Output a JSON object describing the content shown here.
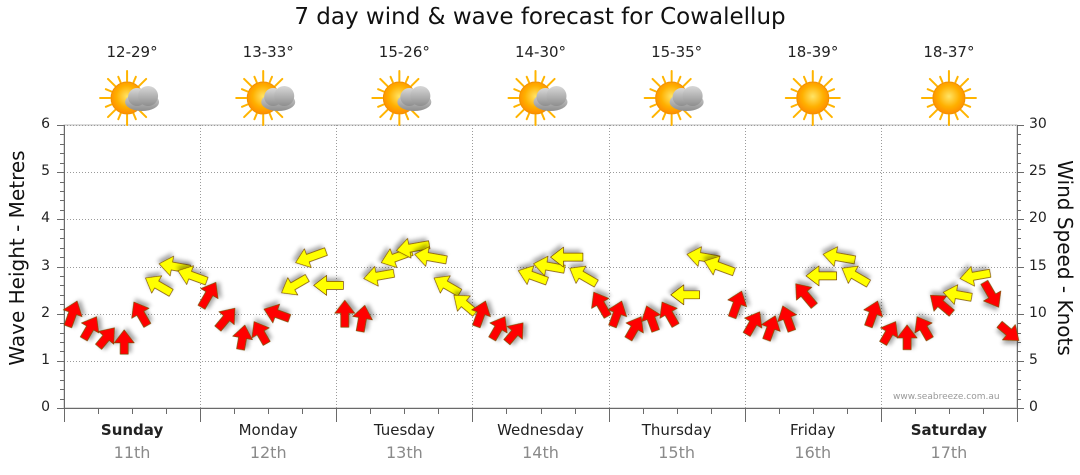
{
  "chart_data": {
    "type": "wind-wave-forecast",
    "title": "7 day wind & wave forecast for Cowalellup",
    "ylabel_left": "Wave Height - Metres",
    "ylabel_right": "Wind Speed - Knots",
    "ylim_left": [
      0,
      6
    ],
    "ylim_right": [
      0,
      30
    ],
    "yticks_left": [
      "0",
      "1",
      "2",
      "3",
      "4",
      "5",
      "6"
    ],
    "yticks_right": [
      "0",
      "5",
      "10",
      "15",
      "20",
      "25",
      "30"
    ],
    "credit": "www.seabreeze.com.au",
    "days": [
      {
        "name": "Sunday",
        "date": "11th",
        "temp": "12-29°",
        "weather": "partly-cloudy",
        "weekend": true
      },
      {
        "name": "Monday",
        "date": "12th",
        "temp": "13-33°",
        "weather": "partly-cloudy",
        "weekend": false
      },
      {
        "name": "Tuesday",
        "date": "13th",
        "temp": "15-26°",
        "weather": "partly-cloudy",
        "weekend": false
      },
      {
        "name": "Wednesday",
        "date": "14th",
        "temp": "14-30°",
        "weather": "partly-cloudy",
        "weekend": false
      },
      {
        "name": "Thursday",
        "date": "15th",
        "temp": "15-35°",
        "weather": "partly-cloudy",
        "weekend": false
      },
      {
        "name": "Friday",
        "date": "16th",
        "temp": "18-39°",
        "weather": "sunny",
        "weekend": false
      },
      {
        "name": "Saturday",
        "date": "17th",
        "temp": "18-37°",
        "weather": "sunny",
        "weekend": true
      }
    ],
    "wind_colors": {
      "offshore": "#ff0000",
      "onshore": "#ffff00"
    },
    "wind_series": [
      {
        "t": 0.0,
        "knots": 10,
        "dir": 200,
        "color": "offshore"
      },
      {
        "t": 0.13,
        "knots": 8.5,
        "dir": 210,
        "color": "offshore"
      },
      {
        "t": 0.25,
        "knots": 7.5,
        "dir": 220,
        "color": "offshore"
      },
      {
        "t": 0.38,
        "knots": 7.0,
        "dir": 180,
        "color": "offshore"
      },
      {
        "t": 0.5,
        "knots": 10,
        "dir": 150,
        "color": "offshore"
      },
      {
        "t": 0.63,
        "knots": 13,
        "dir": 120,
        "color": "onshore"
      },
      {
        "t": 0.75,
        "knots": 15,
        "dir": 100,
        "color": "onshore"
      },
      {
        "t": 0.88,
        "knots": 14,
        "dir": 110,
        "color": "onshore"
      },
      {
        "t": 1.0,
        "knots": 12,
        "dir": 210,
        "color": "offshore"
      },
      {
        "t": 1.13,
        "knots": 9.5,
        "dir": 220,
        "color": "offshore"
      },
      {
        "t": 1.25,
        "knots": 7.5,
        "dir": 190,
        "color": "offshore"
      },
      {
        "t": 1.38,
        "knots": 8.0,
        "dir": 150,
        "color": "offshore"
      },
      {
        "t": 1.5,
        "knots": 10,
        "dir": 110,
        "color": "offshore"
      },
      {
        "t": 1.63,
        "knots": 13,
        "dir": 60,
        "color": "onshore"
      },
      {
        "t": 1.75,
        "knots": 16,
        "dir": 70,
        "color": "onshore"
      },
      {
        "t": 1.88,
        "knots": 13,
        "dir": 90,
        "color": "onshore"
      },
      {
        "t": 2.0,
        "knots": 10,
        "dir": 180,
        "color": "offshore"
      },
      {
        "t": 2.13,
        "knots": 9.5,
        "dir": 190,
        "color": "offshore"
      },
      {
        "t": 2.25,
        "knots": 14,
        "dir": 80,
        "color": "onshore"
      },
      {
        "t": 2.38,
        "knots": 16,
        "dir": 70,
        "color": "onshore"
      },
      {
        "t": 2.5,
        "knots": 17,
        "dir": 80,
        "color": "onshore"
      },
      {
        "t": 2.63,
        "knots": 16,
        "dir": 100,
        "color": "onshore"
      },
      {
        "t": 2.75,
        "knots": 13,
        "dir": 120,
        "color": "onshore"
      },
      {
        "t": 2.88,
        "knots": 11,
        "dir": 130,
        "color": "onshore"
      },
      {
        "t": 3.0,
        "knots": 10,
        "dir": 200,
        "color": "offshore"
      },
      {
        "t": 3.13,
        "knots": 8.5,
        "dir": 210,
        "color": "offshore"
      },
      {
        "t": 3.25,
        "knots": 8.0,
        "dir": 220,
        "color": "offshore"
      },
      {
        "t": 3.38,
        "knots": 14,
        "dir": 110,
        "color": "onshore"
      },
      {
        "t": 3.5,
        "knots": 15,
        "dir": 100,
        "color": "onshore"
      },
      {
        "t": 3.63,
        "knots": 16,
        "dir": 90,
        "color": "onshore"
      },
      {
        "t": 3.75,
        "knots": 14,
        "dir": 120,
        "color": "onshore"
      },
      {
        "t": 3.88,
        "knots": 11,
        "dir": 150,
        "color": "offshore"
      },
      {
        "t": 4.0,
        "knots": 10,
        "dir": 200,
        "color": "offshore"
      },
      {
        "t": 4.13,
        "knots": 8.5,
        "dir": 210,
        "color": "offshore"
      },
      {
        "t": 4.25,
        "knots": 9.5,
        "dir": 160,
        "color": "offshore"
      },
      {
        "t": 4.38,
        "knots": 10,
        "dir": 150,
        "color": "offshore"
      },
      {
        "t": 4.5,
        "knots": 12,
        "dir": 90,
        "color": "onshore"
      },
      {
        "t": 4.63,
        "knots": 16,
        "dir": 100,
        "color": "onshore"
      },
      {
        "t": 4.75,
        "knots": 15,
        "dir": 110,
        "color": "onshore"
      },
      {
        "t": 4.88,
        "knots": 11,
        "dir": 200,
        "color": "offshore"
      },
      {
        "t": 5.0,
        "knots": 9,
        "dir": 210,
        "color": "offshore"
      },
      {
        "t": 5.13,
        "knots": 8.5,
        "dir": 200,
        "color": "offshore"
      },
      {
        "t": 5.25,
        "knots": 9.5,
        "dir": 160,
        "color": "offshore"
      },
      {
        "t": 5.38,
        "knots": 12,
        "dir": 140,
        "color": "offshore"
      },
      {
        "t": 5.5,
        "knots": 14,
        "dir": 90,
        "color": "onshore"
      },
      {
        "t": 5.63,
        "knots": 16,
        "dir": 100,
        "color": "onshore"
      },
      {
        "t": 5.75,
        "knots": 14,
        "dir": 120,
        "color": "onshore"
      },
      {
        "t": 5.88,
        "knots": 10,
        "dir": 200,
        "color": "offshore"
      },
      {
        "t": 6.0,
        "knots": 8,
        "dir": 210,
        "color": "offshore"
      },
      {
        "t": 6.13,
        "knots": 7.5,
        "dir": 180,
        "color": "offshore"
      },
      {
        "t": 6.25,
        "knots": 8.5,
        "dir": 150,
        "color": "offshore"
      },
      {
        "t": 6.38,
        "knots": 11,
        "dir": 130,
        "color": "offshore"
      },
      {
        "t": 6.5,
        "knots": 12,
        "dir": 100,
        "color": "onshore"
      },
      {
        "t": 6.63,
        "knots": 14,
        "dir": 80,
        "color": "onshore"
      },
      {
        "t": 6.75,
        "knots": 12,
        "dir": 330,
        "color": "offshore"
      },
      {
        "t": 6.88,
        "knots": 8,
        "dir": 310,
        "color": "offshore"
      }
    ]
  }
}
